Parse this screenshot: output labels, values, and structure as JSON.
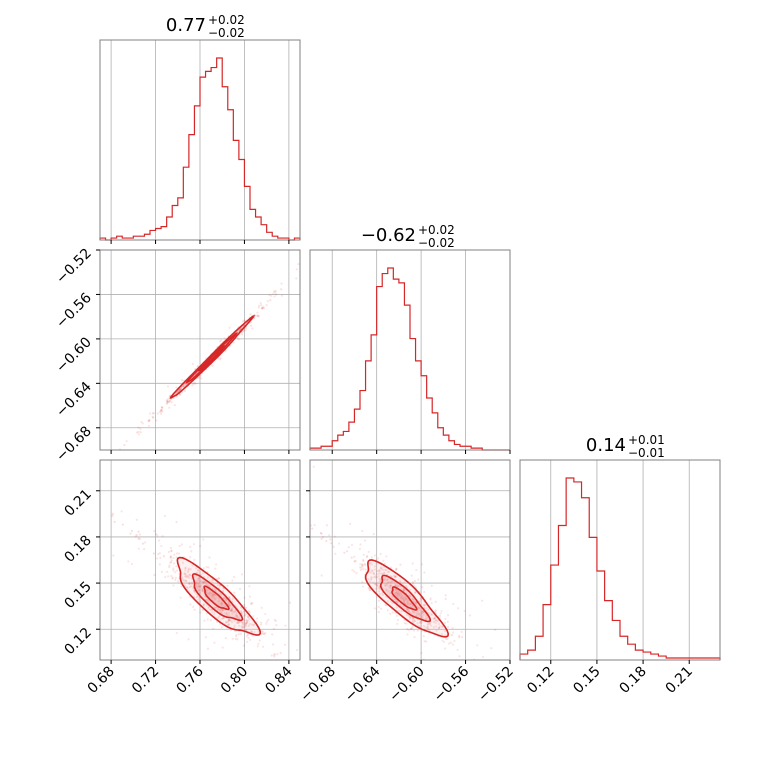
{
  "chart_data": {
    "type": "corner",
    "color": "#d62728",
    "fill_color": "#ec9a9b",
    "grid": true,
    "parameters": [
      {
        "title": {
          "median": "0.77",
          "plus": "+0.02",
          "minus": "−0.02"
        },
        "range": [
          0.67,
          0.85
        ],
        "ticks": [
          0.68,
          0.72,
          0.76,
          0.8,
          0.84
        ],
        "tick_labels": [
          "0.68",
          "0.72",
          "0.76",
          "0.80",
          "0.84"
        ],
        "hist": {
          "edges": [
            0.67,
            0.675,
            0.68,
            0.685,
            0.69,
            0.695,
            0.7,
            0.705,
            0.71,
            0.715,
            0.72,
            0.725,
            0.73,
            0.735,
            0.74,
            0.745,
            0.75,
            0.755,
            0.76,
            0.765,
            0.77,
            0.775,
            0.78,
            0.785,
            0.79,
            0.795,
            0.8,
            0.805,
            0.81,
            0.815,
            0.82,
            0.825,
            0.83,
            0.835,
            0.84,
            0.845,
            0.85
          ],
          "counts": [
            1,
            0,
            1,
            2,
            1,
            1,
            2,
            2,
            3,
            5,
            6,
            7,
            12,
            18,
            22,
            38,
            55,
            70,
            85,
            88,
            90,
            95,
            80,
            68,
            52,
            42,
            28,
            16,
            12,
            8,
            4,
            2,
            1,
            1,
            0,
            1
          ]
        }
      },
      {
        "title": {
          "median": "−0.62",
          "plus": "+0.02",
          "minus": "−0.02"
        },
        "range": [
          -0.7,
          -0.52
        ],
        "ticks": [
          -0.68,
          -0.64,
          -0.6,
          -0.56,
          -0.52
        ],
        "tick_labels": [
          "−0.68",
          "−0.64",
          "−0.60",
          "−0.56",
          "−0.52"
        ],
        "hist": {
          "edges": [
            -0.7,
            -0.695,
            -0.69,
            -0.685,
            -0.68,
            -0.675,
            -0.67,
            -0.665,
            -0.66,
            -0.655,
            -0.65,
            -0.645,
            -0.64,
            -0.635,
            -0.63,
            -0.625,
            -0.62,
            -0.615,
            -0.61,
            -0.605,
            -0.6,
            -0.595,
            -0.59,
            -0.585,
            -0.58,
            -0.575,
            -0.57,
            -0.565,
            -0.56,
            -0.555,
            -0.55,
            -0.545,
            -0.54,
            -0.535,
            -0.53,
            -0.525,
            -0.52
          ],
          "counts": [
            1,
            1,
            2,
            2,
            5,
            8,
            10,
            15,
            22,
            32,
            48,
            62,
            88,
            95,
            98,
            92,
            90,
            78,
            60,
            48,
            40,
            28,
            20,
            12,
            8,
            5,
            3,
            2,
            2,
            1,
            1,
            0,
            0,
            0,
            0,
            0
          ]
        }
      },
      {
        "title": {
          "median": "0.14",
          "plus": "+0.01",
          "minus": "−0.01"
        },
        "range": [
          0.1,
          0.23
        ],
        "ticks": [
          0.12,
          0.15,
          0.18,
          0.21
        ],
        "tick_labels": [
          "0.12",
          "0.15",
          "0.18",
          "0.21"
        ],
        "hist": {
          "edges": [
            0.1,
            0.105,
            0.11,
            0.115,
            0.12,
            0.125,
            0.13,
            0.135,
            0.14,
            0.145,
            0.15,
            0.155,
            0.16,
            0.165,
            0.17,
            0.175,
            0.18,
            0.185,
            0.19,
            0.195,
            0.2,
            0.205,
            0.21,
            0.215,
            0.22,
            0.225,
            0.23
          ],
          "counts": [
            3,
            5,
            12,
            28,
            48,
            68,
            92,
            90,
            82,
            62,
            45,
            30,
            20,
            12,
            8,
            5,
            4,
            3,
            2,
            1,
            1,
            1,
            1,
            1,
            1,
            1
          ]
        }
      }
    ],
    "pairs": [
      {
        "x_param": 0,
        "y_param": 1,
        "center": [
          0.77,
          -0.618
        ],
        "sigma": [
          0.018,
          0.018
        ],
        "rho": 0.995,
        "scatter_extent": [
          0.68,
          0.835
        ]
      },
      {
        "x_param": 0,
        "y_param": 2,
        "center": [
          0.774,
          0.14
        ],
        "sigma": [
          0.018,
          0.012
        ],
        "rho": -0.85,
        "scatter_extent": [
          0.68,
          0.83
        ]
      },
      {
        "x_param": 1,
        "y_param": 2,
        "center": [
          -0.616,
          0.14
        ],
        "sigma": [
          0.018,
          0.012
        ],
        "rho": -0.85,
        "scatter_extent": [
          -0.7,
          -0.57
        ]
      }
    ]
  }
}
